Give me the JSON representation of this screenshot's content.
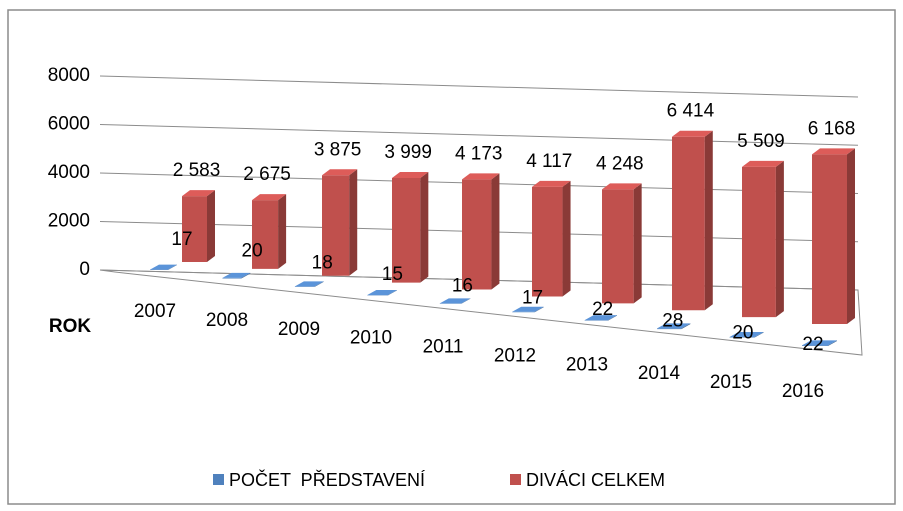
{
  "chart_data": {
    "type": "bar3d",
    "x_label": "ROK",
    "categories": [
      "2007",
      "2008",
      "2009",
      "2010",
      "2011",
      "2012",
      "2013",
      "2014",
      "2015",
      "2016"
    ],
    "series": [
      {
        "name": "POČET  PŘEDSTAVENÍ",
        "color": "#4f81bd",
        "values": [
          17,
          20,
          18,
          15,
          16,
          17,
          22,
          28,
          20,
          22
        ]
      },
      {
        "name": "DIVÁCI CELKEM",
        "color": "#c0504d",
        "values": [
          2583,
          2675,
          3875,
          3999,
          4173,
          4117,
          4248,
          6414,
          5509,
          6168
        ],
        "value_labels": [
          "2 583",
          "2 675",
          "3 875",
          "3 999",
          "4 173",
          "4 117",
          "4 248",
          "6 414",
          "5 509",
          "6 168"
        ]
      }
    ],
    "ylim": [
      0,
      8000
    ],
    "yticks": [
      0,
      2000,
      4000,
      6000,
      8000
    ],
    "grid": true,
    "legend": "bottom"
  }
}
